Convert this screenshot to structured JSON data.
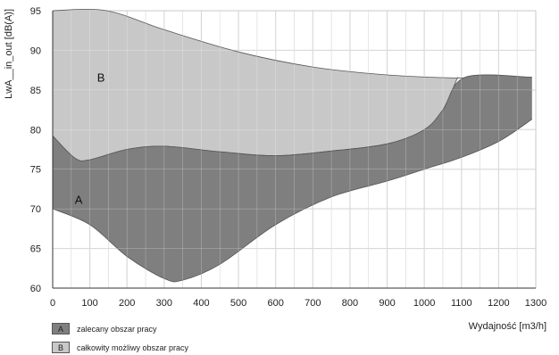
{
  "chart_data": {
    "type": "area",
    "xlabel": "Wydajność [m3/h]",
    "ylabel": "LwA__in_out [dB(A)]",
    "xlim": [
      0,
      1300
    ],
    "ylim": [
      60,
      95
    ],
    "xticks": [
      "0",
      "100",
      "200",
      "300",
      "400",
      "500",
      "600",
      "700",
      "800",
      "900",
      "1000",
      "1100",
      "1200",
      "1300"
    ],
    "yticks": [
      "60",
      "65",
      "70",
      "75",
      "80",
      "85",
      "90",
      "95"
    ],
    "grid": true,
    "colors": {
      "A": "#7f7f7f",
      "B": "#c8c8c8",
      "grid": "#c8c8c8"
    },
    "regions": [
      {
        "key": "B",
        "label": "B",
        "legend": "całkowity możliwy obszar pracy",
        "upper": [
          [
            0,
            95
          ],
          [
            145,
            95
          ],
          [
            300,
            92.6
          ],
          [
            500,
            89.8
          ],
          [
            700,
            87.9
          ],
          [
            900,
            86.9
          ],
          [
            1100,
            86.5
          ],
          [
            1290,
            86.6
          ]
        ],
        "lower": [
          [
            0,
            79.2
          ],
          [
            60,
            76.4
          ],
          [
            100,
            76.2
          ],
          [
            200,
            77.5
          ],
          [
            300,
            77.9
          ],
          [
            450,
            77.2
          ],
          [
            600,
            76.7
          ],
          [
            750,
            77.3
          ],
          [
            900,
            78.2
          ],
          [
            1000,
            80
          ],
          [
            1050,
            82.5
          ],
          [
            1090,
            86.6
          ]
        ]
      },
      {
        "key": "A",
        "label": "A",
        "legend": "zalecany obszar pracy",
        "upper": [
          [
            0,
            79.2
          ],
          [
            60,
            76.4
          ],
          [
            100,
            76.2
          ],
          [
            200,
            77.5
          ],
          [
            300,
            77.9
          ],
          [
            450,
            77.2
          ],
          [
            600,
            76.7
          ],
          [
            750,
            77.3
          ],
          [
            900,
            78.2
          ],
          [
            1000,
            80
          ],
          [
            1050,
            82.5
          ],
          [
            1110,
            86.6
          ],
          [
            1290,
            86.6
          ]
        ],
        "lower": [
          [
            0,
            70
          ],
          [
            100,
            68
          ],
          [
            200,
            64
          ],
          [
            300,
            61.2
          ],
          [
            350,
            61
          ],
          [
            450,
            63
          ],
          [
            600,
            68
          ],
          [
            750,
            71.5
          ],
          [
            900,
            73.5
          ],
          [
            1000,
            75
          ],
          [
            1100,
            76.5
          ],
          [
            1200,
            78.5
          ],
          [
            1290,
            81.3
          ]
        ]
      }
    ],
    "region_labels": [
      {
        "text": "B",
        "x": 130,
        "y": 86.6
      },
      {
        "text": "A",
        "x": 70,
        "y": 71.2
      }
    ]
  }
}
